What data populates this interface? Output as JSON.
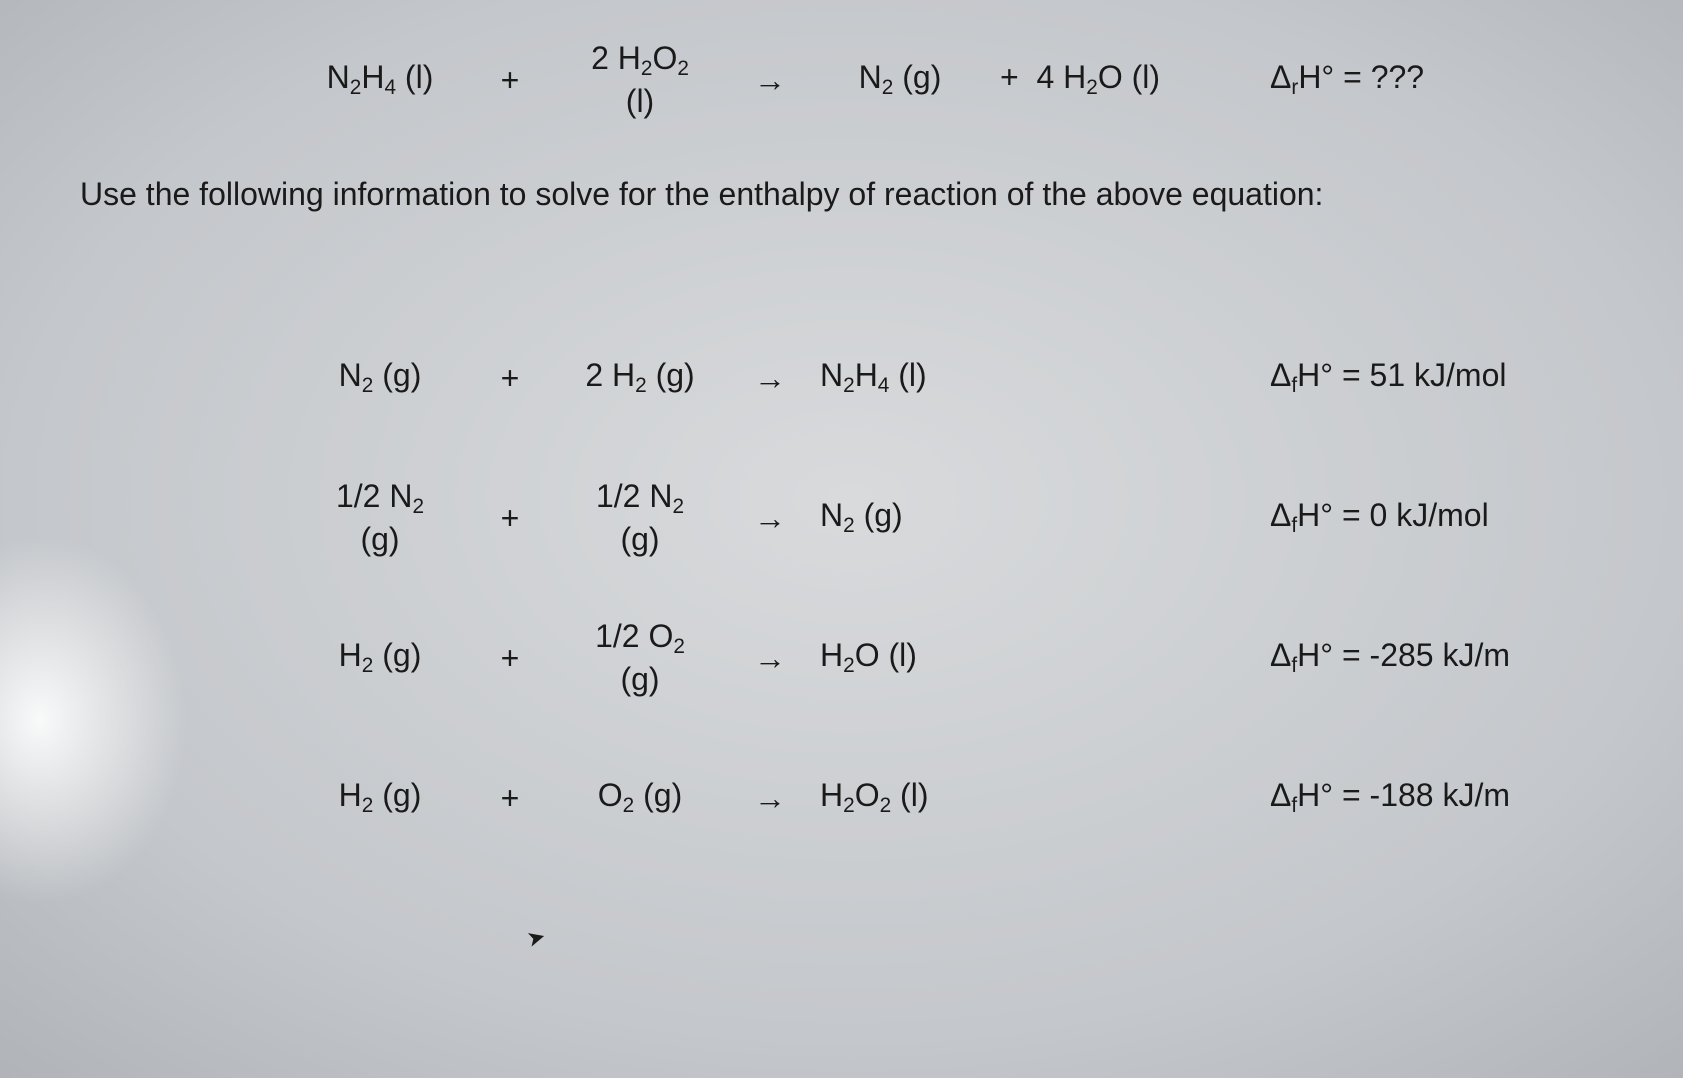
{
  "target": {
    "r1": "N<sub>2</sub>H<sub>4</sub> (l)",
    "plus1": "+",
    "r2_top": "2 H<sub>2</sub>O<sub>2</sub>",
    "r2_bot": "(l)",
    "arrow": "→",
    "p1": "N<sub>2</sub> (g)",
    "plus2": "+&nbsp;&nbsp;4 H<sub>2</sub>O (l)",
    "dH": "Δ<sub>r</sub>H° = ???"
  },
  "instruction": "Use the following information to solve for the enthalpy of reaction of the above equation:",
  "rows": [
    {
      "r1": "N<sub>2</sub> (g)",
      "plus1": "+",
      "r2": "2 H<sub>2</sub> (g)",
      "arrow": "→",
      "p1": "N<sub>2</sub>H<sub>4</sub> (l)",
      "p2": "",
      "dH": "Δ<sub>f</sub>H° = 51 kJ/mol"
    },
    {
      "r1_top": "1/2 N<sub>2</sub>",
      "r1_bot": "(g)",
      "plus1": "+",
      "r2_top": "1/2 N<sub>2</sub>",
      "r2_bot": "(g)",
      "arrow": "→",
      "p1": "N<sub>2</sub> (g)",
      "p2": "",
      "dH": "Δ<sub>f</sub>H° = 0 kJ/mol"
    },
    {
      "r1": "H<sub>2</sub> (g)",
      "plus1": "+",
      "r2_top": "1/2 O<sub>2</sub>",
      "r2_bot": "(g)",
      "arrow": "→",
      "p1": "H<sub>2</sub>O (l)",
      "p2": "",
      "dH": "Δ<sub>f</sub>H° = -285 kJ/m"
    },
    {
      "r1": "H<sub>2</sub> (g)",
      "plus1": "+",
      "r2": "O<sub>2</sub> (g)",
      "arrow": "→",
      "p1": "H<sub>2</sub>O<sub>2</sub> (l)",
      "p2": "",
      "dH": "Δ<sub>f</sub>H° = -188 kJ/m"
    }
  ],
  "colors": {
    "text": "#1a1a1a",
    "bg_center": "#d8dadc",
    "bg_edge": "#a8acb0"
  },
  "font_size_main": 32
}
